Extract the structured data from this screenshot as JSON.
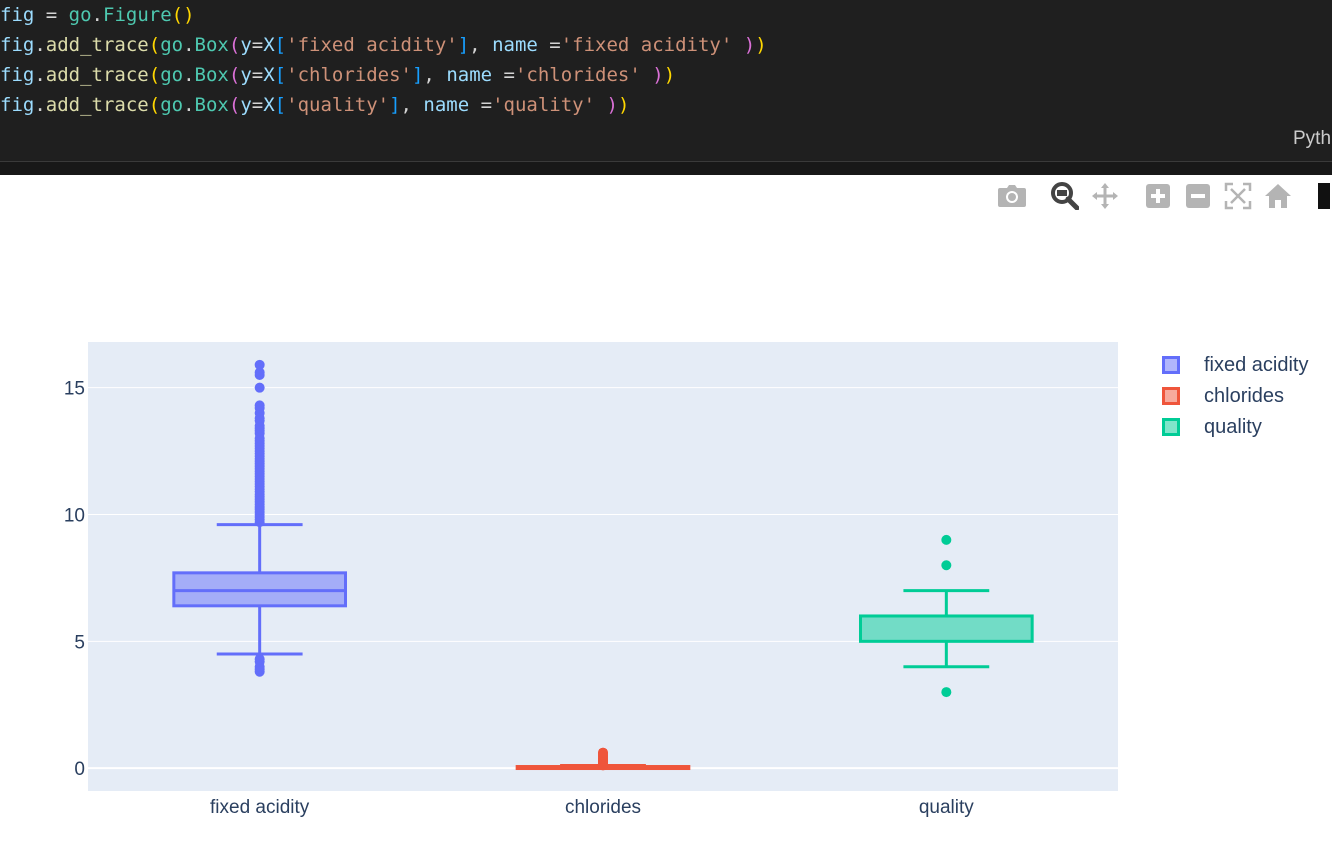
{
  "code": {
    "lines": [
      [
        {
          "t": "fig",
          "c": "tk-var"
        },
        {
          "t": " = ",
          "c": "tk-op"
        },
        {
          "t": "go",
          "c": "tk-mod"
        },
        {
          "t": ".",
          "c": "tk-op"
        },
        {
          "t": "Figure",
          "c": "tk-mod"
        },
        {
          "t": "()",
          "c": "tk-p1"
        }
      ],
      [
        {
          "t": "fig",
          "c": "tk-var"
        },
        {
          "t": ".",
          "c": "tk-op"
        },
        {
          "t": "add_trace",
          "c": "tk-fn"
        },
        {
          "t": "(",
          "c": "tk-p1"
        },
        {
          "t": "go",
          "c": "tk-mod"
        },
        {
          "t": ".",
          "c": "tk-op"
        },
        {
          "t": "Box",
          "c": "tk-mod"
        },
        {
          "t": "(",
          "c": "tk-p2"
        },
        {
          "t": "y",
          "c": "tk-var"
        },
        {
          "t": "=",
          "c": "tk-op"
        },
        {
          "t": "X",
          "c": "tk-var"
        },
        {
          "t": "[",
          "c": "tk-p3"
        },
        {
          "t": "'fixed acidity'",
          "c": "tk-str"
        },
        {
          "t": "]",
          "c": "tk-p3"
        },
        {
          "t": ", ",
          "c": "tk-op"
        },
        {
          "t": "name",
          "c": "tk-var"
        },
        {
          "t": " =",
          "c": "tk-op"
        },
        {
          "t": "'fixed acidity'",
          "c": "tk-str"
        },
        {
          "t": " ",
          "c": "tk-op"
        },
        {
          "t": ")",
          "c": "tk-p2"
        },
        {
          "t": ")",
          "c": "tk-p1"
        }
      ],
      [
        {
          "t": "fig",
          "c": "tk-var"
        },
        {
          "t": ".",
          "c": "tk-op"
        },
        {
          "t": "add_trace",
          "c": "tk-fn"
        },
        {
          "t": "(",
          "c": "tk-p1"
        },
        {
          "t": "go",
          "c": "tk-mod"
        },
        {
          "t": ".",
          "c": "tk-op"
        },
        {
          "t": "Box",
          "c": "tk-mod"
        },
        {
          "t": "(",
          "c": "tk-p2"
        },
        {
          "t": "y",
          "c": "tk-var"
        },
        {
          "t": "=",
          "c": "tk-op"
        },
        {
          "t": "X",
          "c": "tk-var"
        },
        {
          "t": "[",
          "c": "tk-p3"
        },
        {
          "t": "'chlorides'",
          "c": "tk-str"
        },
        {
          "t": "]",
          "c": "tk-p3"
        },
        {
          "t": ", ",
          "c": "tk-op"
        },
        {
          "t": "name",
          "c": "tk-var"
        },
        {
          "t": " =",
          "c": "tk-op"
        },
        {
          "t": "'chlorides'",
          "c": "tk-str"
        },
        {
          "t": " ",
          "c": "tk-op"
        },
        {
          "t": ")",
          "c": "tk-p2"
        },
        {
          "t": ")",
          "c": "tk-p1"
        }
      ],
      [
        {
          "t": "fig",
          "c": "tk-var"
        },
        {
          "t": ".",
          "c": "tk-op"
        },
        {
          "t": "add_trace",
          "c": "tk-fn"
        },
        {
          "t": "(",
          "c": "tk-p1"
        },
        {
          "t": "go",
          "c": "tk-mod"
        },
        {
          "t": ".",
          "c": "tk-op"
        },
        {
          "t": "Box",
          "c": "tk-mod"
        },
        {
          "t": "(",
          "c": "tk-p2"
        },
        {
          "t": "y",
          "c": "tk-var"
        },
        {
          "t": "=",
          "c": "tk-op"
        },
        {
          "t": "X",
          "c": "tk-var"
        },
        {
          "t": "[",
          "c": "tk-p3"
        },
        {
          "t": "'quality'",
          "c": "tk-str"
        },
        {
          "t": "]",
          "c": "tk-p3"
        },
        {
          "t": ", ",
          "c": "tk-op"
        },
        {
          "t": "name",
          "c": "tk-var"
        },
        {
          "t": " =",
          "c": "tk-op"
        },
        {
          "t": "'quality'",
          "c": "tk-str"
        },
        {
          "t": " ",
          "c": "tk-op"
        },
        {
          "t": ")",
          "c": "tk-p2"
        },
        {
          "t": ")",
          "c": "tk-p1"
        }
      ]
    ],
    "language_label": "Pyth"
  },
  "modebar": {
    "buttons": [
      {
        "name": "camera-icon",
        "title": "Download plot as a png"
      },
      {
        "name": "zoom-icon",
        "title": "Zoom",
        "active": true
      },
      {
        "name": "pan-icon",
        "title": "Pan"
      },
      {
        "name": "zoom-in-icon",
        "title": "Zoom in"
      },
      {
        "name": "zoom-out-icon",
        "title": "Zoom out"
      },
      {
        "name": "autoscale-icon",
        "title": "Autoscale"
      },
      {
        "name": "home-icon",
        "title": "Reset axes"
      }
    ]
  },
  "colors": {
    "plot_bg": "#e5ecf6",
    "grid": "#ffffff",
    "text": "#2a3f5f",
    "code_bg": "#1f1f1f"
  },
  "chart_data": {
    "type": "box",
    "ylim": [
      -0.9,
      16.8
    ],
    "yticks": [
      0,
      5,
      10,
      15
    ],
    "grid": true,
    "legend_position": "right",
    "categories": [
      "fixed acidity",
      "chlorides",
      "quality"
    ],
    "series": [
      {
        "name": "fixed acidity",
        "color": "#636efa",
        "fill": "rgba(99,110,250,0.5)",
        "q1": 6.4,
        "median": 7.0,
        "q3": 7.7,
        "lower_fence": 4.5,
        "upper_fence": 9.6,
        "outliers": [
          3.8,
          3.9,
          4.0,
          4.2,
          4.3,
          9.7,
          9.8,
          9.9,
          10.0,
          10.1,
          10.2,
          10.3,
          10.4,
          10.5,
          10.6,
          10.7,
          10.8,
          10.9,
          11.0,
          11.1,
          11.2,
          11.3,
          11.4,
          11.5,
          11.6,
          11.7,
          11.8,
          11.9,
          12.0,
          12.1,
          12.2,
          12.3,
          12.4,
          12.5,
          12.6,
          12.7,
          12.8,
          12.9,
          13.0,
          13.2,
          13.3,
          13.4,
          13.5,
          13.7,
          13.8,
          14.0,
          14.2,
          14.3,
          15.0,
          15.5,
          15.6,
          15.9
        ]
      },
      {
        "name": "chlorides",
        "color": "#ef553b",
        "fill": "rgba(239,85,59,0.5)",
        "q1": 0.038,
        "median": 0.047,
        "q3": 0.065,
        "lower_fence": 0.009,
        "upper_fence": 0.105,
        "outliers": [
          0.11,
          0.13,
          0.15,
          0.17,
          0.19,
          0.21,
          0.23,
          0.25,
          0.27,
          0.3,
          0.33,
          0.36,
          0.4,
          0.45,
          0.5,
          0.55,
          0.61,
          0.61
        ]
      },
      {
        "name": "quality",
        "color": "#00cc96",
        "fill": "rgba(0,204,150,0.5)",
        "q1": 5,
        "median": 6,
        "q3": 6,
        "lower_fence": 4,
        "upper_fence": 7,
        "outliers": [
          3,
          8,
          9
        ]
      }
    ]
  }
}
